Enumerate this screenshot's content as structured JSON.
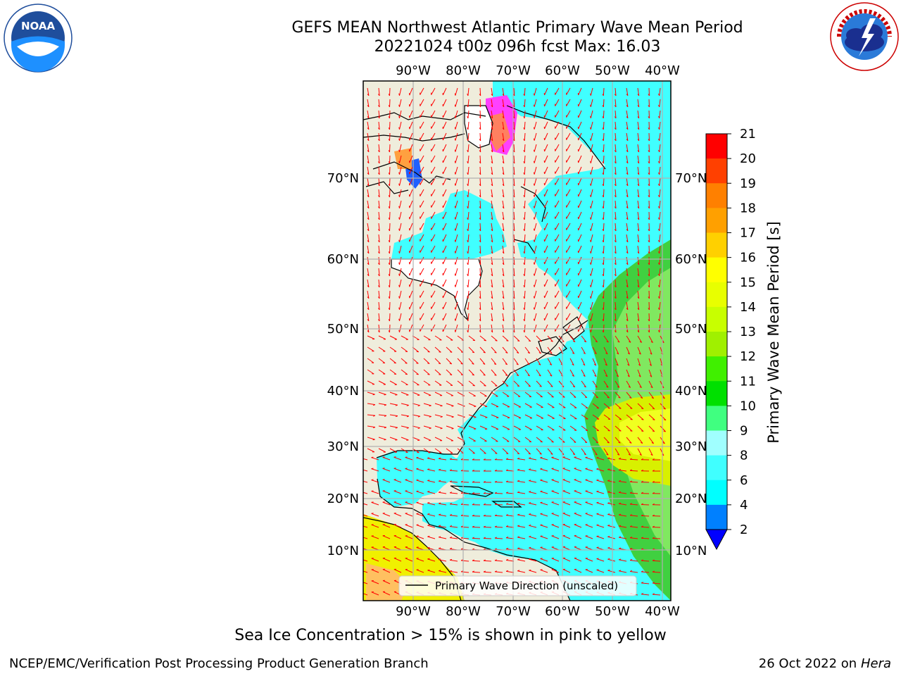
{
  "title": {
    "line1": "GEFS MEAN Northwest Atlantic Primary Wave Mean Period",
    "line2": "20221024 t00z 096h fcst   Max: 16.03"
  },
  "map": {
    "lon_ticks": [
      "90°W",
      "80°W",
      "70°W",
      "60°W",
      "50°W",
      "40°W"
    ],
    "lat_ticks": [
      "70°N",
      "60°N",
      "50°N",
      "40°N",
      "30°N",
      "20°N",
      "10°N"
    ],
    "legend_label": "Primary Wave Direction (unscaled)",
    "arrow_color": "#ff0000"
  },
  "colorbar": {
    "label": "Primary Wave Mean Period [s]",
    "ticks": [
      "2",
      "4",
      "6",
      "8",
      "9",
      "10",
      "11",
      "12",
      "13",
      "14",
      "15",
      "16",
      "17",
      "18",
      "19",
      "20",
      "21"
    ],
    "colors": [
      "#0000ff",
      "#0080ff",
      "#00ffff",
      "#40ffff",
      "#a0ffff",
      "#40ff80",
      "#00e000",
      "#40f000",
      "#a0f000",
      "#c8ff00",
      "#e8ff00",
      "#ffff00",
      "#ffd000",
      "#ffa000",
      "#ff8000",
      "#ff4000",
      "#ff0000"
    ]
  },
  "footer": {
    "ice_note": "Sea Ice Concentration > 15% is shown in pink to yellow",
    "left": "NCEP/EMC/Verification Post Processing Product Generation Branch",
    "right_date": "26 Oct 2022 on",
    "right_machine": "Hera"
  },
  "logos": {
    "left": "NOAA",
    "left_ring": "NATIONAL OCEANIC AND ATMOSPHERIC ADMINISTRATION · U.S. DEPARTMENT OF COMMERCE",
    "right_ring": "NATIONAL WEATHER SERVICE"
  }
}
